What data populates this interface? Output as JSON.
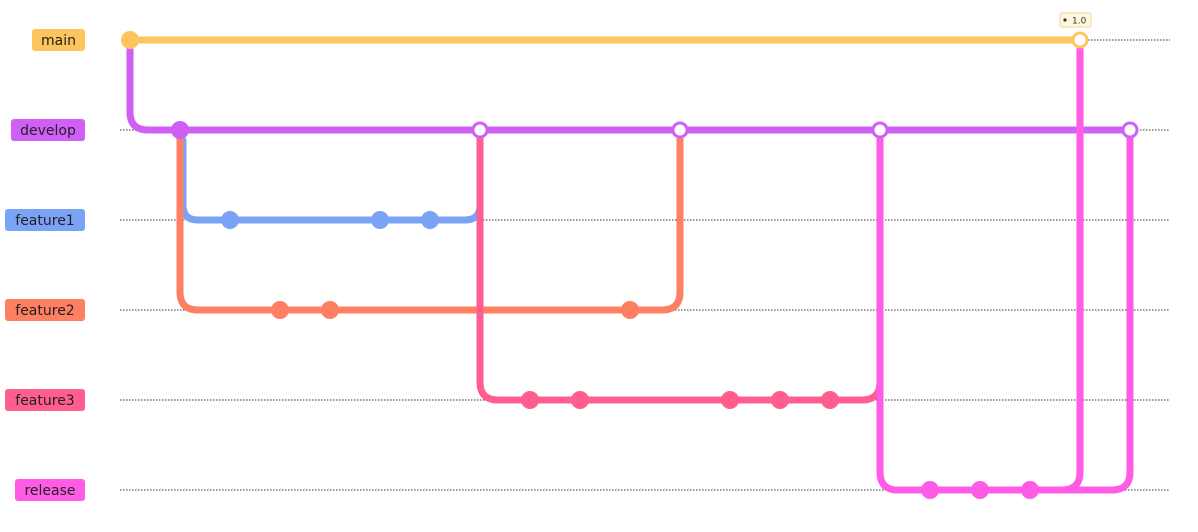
{
  "graph": {
    "tag": "1.0",
    "branches": [
      {
        "name": "main",
        "color": "#fcc55e"
      },
      {
        "name": "develop",
        "color": "#cf5ff5"
      },
      {
        "name": "feature1",
        "color": "#7aa3f5"
      },
      {
        "name": "feature2",
        "color": "#ff7f63"
      },
      {
        "name": "feature3",
        "color": "#ff5e8f"
      },
      {
        "name": "release",
        "color": "#ff5be5"
      }
    ]
  }
}
